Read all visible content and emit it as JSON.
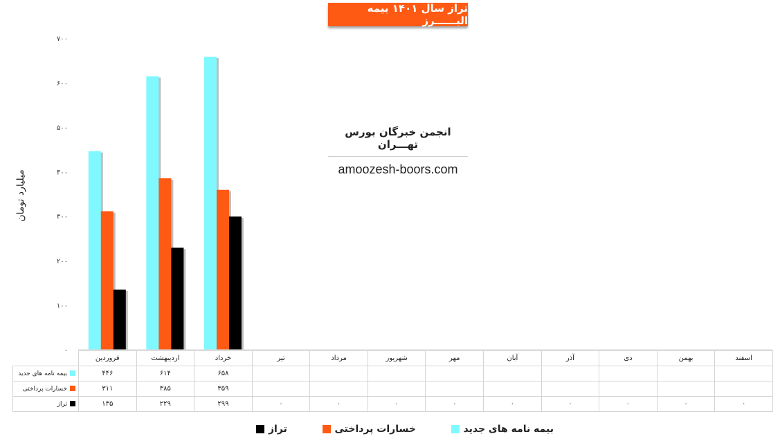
{
  "chart_data": {
    "type": "bar",
    "title": "تراز سال ۱۴۰۱ بیمه البــــــرز",
    "ylabel": "میلیارد تومان",
    "xlabel": "",
    "ylim": [
      0,
      700
    ],
    "yticks": [
      "۰",
      "۱۰۰",
      "۲۰۰",
      "۳۰۰",
      "۴۰۰",
      "۵۰۰",
      "۶۰۰",
      "۷۰۰"
    ],
    "ytick_values": [
      0,
      100,
      200,
      300,
      400,
      500,
      600,
      700
    ],
    "categories": [
      "فروردین",
      "اردیبهشت",
      "خرداد",
      "تیر",
      "مرداد",
      "شهریور",
      "مهر",
      "آبان",
      "آذر",
      "دی",
      "بهمن",
      "اسفند"
    ],
    "series": [
      {
        "name": "بیمه نامه های جدید",
        "color": "#7ff8ff",
        "values": [
          446,
          614,
          658,
          null,
          null,
          null,
          null,
          null,
          null,
          null,
          null,
          null
        ],
        "labels": [
          "۴۴۶",
          "۶۱۴",
          "۶۵۸",
          "",
          "",
          "",
          "",
          "",
          "",
          "",
          "",
          ""
        ]
      },
      {
        "name": "خسارات پرداختی",
        "color": "#ff5a14",
        "values": [
          311,
          385,
          359,
          null,
          null,
          null,
          null,
          null,
          null,
          null,
          null,
          null
        ],
        "labels": [
          "۳۱۱",
          "۳۸۵",
          "۳۵۹",
          "",
          "",
          "",
          "",
          "",
          "",
          "",
          "",
          ""
        ]
      },
      {
        "name": "تراز",
        "color": "#000000",
        "values": [
          135,
          229,
          299,
          0,
          0,
          0,
          0,
          0,
          0,
          0,
          0,
          0
        ],
        "labels": [
          "۱۳۵",
          "۲۲۹",
          "۲۹۹",
          "۰",
          "۰",
          "۰",
          "۰",
          "۰",
          "۰",
          "۰",
          "۰",
          "۰"
        ]
      }
    ],
    "table_row_labels": [
      "بیمه نامه های جدید",
      "خسارات پرداختی",
      "تراز"
    ],
    "legend_labels": [
      "بیمه نامه های جدید",
      "خسارات پرداختی",
      "تراز"
    ],
    "legend_position": "bottom",
    "grid": false
  },
  "watermark": {
    "org": "انجمن خبرگان بورس تهـــران",
    "site": "amoozesh-boors.com"
  }
}
